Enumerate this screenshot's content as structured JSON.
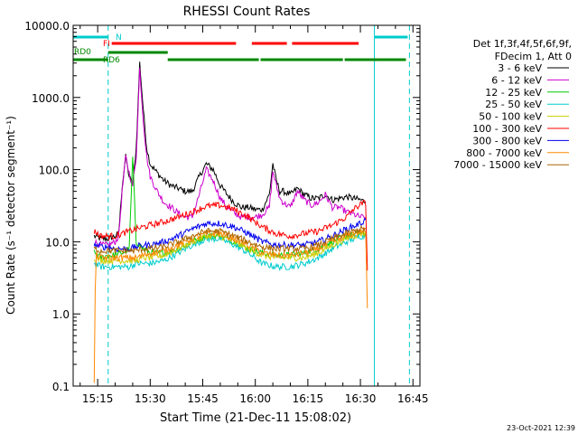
{
  "chart_data": {
    "type": "line",
    "title": "RHESSI Count Rates",
    "xlabel": "Start Time (21-Dec-11 15:08:02)",
    "ylabel": "Count Rate (s⁻¹ detector segment⁻¹)",
    "yscale": "log",
    "ylim": [
      0.1,
      10000
    ],
    "xlim_minutes": [
      0,
      99
    ],
    "x_ticks": [
      {
        "label": "15:15",
        "value": 7
      },
      {
        "label": "15:30",
        "value": 22
      },
      {
        "label": "15:45",
        "value": 37
      },
      {
        "label": "16:00",
        "value": 52
      },
      {
        "label": "16:15",
        "value": 67
      },
      {
        "label": "16:30",
        "value": 82
      },
      {
        "label": "16:45",
        "value": 97
      }
    ],
    "y_ticks": [
      {
        "label": "0.1",
        "value": 0.1
      },
      {
        "label": "1.0",
        "value": 1
      },
      {
        "label": "10.0",
        "value": 10
      },
      {
        "label": "100.0",
        "value": 100
      },
      {
        "label": "1000.0",
        "value": 1000
      },
      {
        "label": "10000.0",
        "value": 10000
      }
    ],
    "legend_header": [
      "Det 1f,3f,4f,5f,6f,9f,",
      "FDecim 1, Att 0"
    ],
    "legend_position": "right",
    "footer_timestamp": "23-Oct-2021 12:39",
    "series": [
      {
        "name": "3 - 6 keV",
        "color": "#000000",
        "x": [
          6,
          8,
          10,
          12,
          13,
          14,
          15,
          16,
          17,
          18,
          19,
          20,
          21,
          22,
          24,
          26,
          28,
          30,
          32,
          34,
          36,
          38,
          40,
          42,
          44,
          46,
          48,
          50,
          52,
          54,
          56,
          57,
          58,
          59,
          60,
          62,
          64,
          66,
          68,
          70,
          72,
          74,
          76,
          78,
          80,
          82,
          83.5
        ],
        "y": [
          12,
          11,
          11,
          12,
          13,
          60,
          150,
          80,
          60,
          200,
          3000,
          700,
          200,
          120,
          90,
          70,
          60,
          55,
          50,
          50,
          80,
          120,
          100,
          60,
          45,
          35,
          30,
          30,
          28,
          28,
          45,
          120,
          70,
          50,
          50,
          45,
          55,
          45,
          40,
          40,
          45,
          38,
          40,
          42,
          40,
          38,
          36
        ]
      },
      {
        "name": "6 - 12 keV",
        "color": "#cc00cc",
        "x": [
          6,
          8,
          10,
          12,
          13,
          14,
          15,
          16,
          17,
          18,
          19,
          20,
          21,
          22,
          24,
          26,
          28,
          30,
          32,
          34,
          36,
          38,
          40,
          42,
          44,
          46,
          48,
          50,
          52,
          54,
          56,
          57,
          58,
          59,
          60,
          62,
          64,
          66,
          68,
          70,
          72,
          74,
          76,
          78,
          80,
          82,
          83.5
        ],
        "y": [
          10,
          9,
          9,
          10,
          12,
          50,
          150,
          90,
          60,
          150,
          2500,
          500,
          150,
          80,
          50,
          35,
          30,
          25,
          22,
          22,
          45,
          100,
          70,
          40,
          30,
          25,
          22,
          22,
          22,
          24,
          30,
          95,
          60,
          40,
          35,
          30,
          50,
          38,
          32,
          35,
          45,
          30,
          30,
          26,
          24,
          22,
          22
        ]
      },
      {
        "name": "12 - 25 keV",
        "color": "#00cc00",
        "x": [
          6,
          8,
          10,
          12,
          14,
          16,
          17,
          18,
          19,
          20,
          22,
          26,
          30,
          34,
          38,
          42,
          46,
          50,
          54,
          58,
          62,
          66,
          70,
          74,
          78,
          82,
          83.5
        ],
        "y": [
          7,
          6,
          6.5,
          6.5,
          7,
          8,
          150,
          10,
          9,
          8,
          7,
          7,
          8,
          10,
          12,
          12,
          10,
          8,
          7,
          6.5,
          6.5,
          7,
          8,
          10,
          12,
          13,
          13
        ]
      },
      {
        "name": "25 - 50 keV",
        "color": "#00cccc",
        "x": [
          6,
          8,
          10,
          12,
          14,
          16,
          18,
          20,
          22,
          26,
          30,
          34,
          38,
          42,
          46,
          50,
          54,
          58,
          62,
          66,
          70,
          74,
          78,
          82,
          83.5
        ],
        "y": [
          5,
          4.5,
          4.5,
          4.5,
          4.5,
          4.5,
          5,
          5,
          5,
          5.5,
          7,
          9,
          11,
          11,
          9,
          7,
          5,
          4.5,
          4.5,
          5,
          6,
          8,
          10,
          12,
          12
        ]
      },
      {
        "name": "50 - 100 keV",
        "color": "#cccc00",
        "x": [
          6,
          8,
          10,
          12,
          14,
          16,
          18,
          20,
          22,
          26,
          30,
          34,
          38,
          42,
          46,
          50,
          54,
          58,
          62,
          66,
          70,
          74,
          78,
          82,
          83.5
        ],
        "y": [
          6,
          5.5,
          5.5,
          5.5,
          5.5,
          5.5,
          5.5,
          6,
          6,
          6.5,
          8,
          10,
          12,
          12,
          10,
          8,
          6.5,
          6,
          6,
          6,
          7,
          9,
          11,
          13,
          13
        ]
      },
      {
        "name": "100 - 300 keV",
        "color": "#ff0000",
        "x": [
          6,
          8,
          10,
          12,
          14,
          16,
          18,
          20,
          22,
          26,
          30,
          34,
          38,
          42,
          46,
          50,
          54,
          58,
          62,
          66,
          70,
          74,
          78,
          80,
          82,
          83.5,
          84
        ],
        "y": [
          14,
          12,
          12,
          12,
          13,
          14,
          15,
          16,
          17,
          19,
          22,
          26,
          31,
          32,
          28,
          22,
          16,
          13,
          12,
          13,
          14,
          17,
          22,
          28,
          33,
          35,
          4
        ]
      },
      {
        "name": "300 - 800 keV",
        "color": "#0000ee",
        "x": [
          6,
          8,
          10,
          12,
          14,
          16,
          18,
          20,
          22,
          26,
          30,
          34,
          38,
          42,
          46,
          50,
          54,
          58,
          62,
          66,
          70,
          74,
          78,
          82,
          83.5
        ],
        "y": [
          9,
          8.5,
          8.5,
          8,
          8,
          8,
          8.5,
          9,
          9,
          10,
          12,
          15,
          18,
          18,
          16,
          13,
          10,
          9,
          9,
          9,
          10,
          12,
          15,
          18,
          20
        ]
      },
      {
        "name": "800 - 7000 keV",
        "color": "#ff8800",
        "x": [
          6,
          6.3,
          6.6,
          8,
          10,
          12,
          14,
          16,
          18,
          20,
          22,
          26,
          30,
          34,
          38,
          42,
          46,
          50,
          54,
          58,
          62,
          66,
          70,
          74,
          78,
          82,
          83.5,
          84
        ],
        "y": [
          0.12,
          2,
          6.5,
          6,
          6,
          6,
          6,
          6,
          6,
          6.5,
          7,
          7.5,
          9,
          11,
          13,
          13,
          11,
          9,
          7,
          6.5,
          6.5,
          7,
          8,
          10,
          12,
          14,
          14,
          1.2
        ]
      },
      {
        "name": "7000 - 15000 keV",
        "color": "#aa6600",
        "x": [
          6,
          8,
          10,
          12,
          14,
          16,
          18,
          20,
          22,
          26,
          30,
          34,
          38,
          42,
          46,
          50,
          54,
          58,
          62,
          66,
          70,
          74,
          78,
          82,
          83.5
        ],
        "y": [
          8,
          7.5,
          7.5,
          7.5,
          7.5,
          7.5,
          7.5,
          8,
          8,
          8.5,
          10,
          12,
          14,
          14,
          12,
          10,
          8.5,
          8,
          8,
          8,
          9,
          11,
          13,
          15,
          15
        ]
      }
    ],
    "vertical_lines": [
      {
        "x": -0.5,
        "style": "solid",
        "color": "#00cccc"
      },
      {
        "x": 10,
        "style": "dashed",
        "color": "#00cccc"
      },
      {
        "x": 86,
        "style": "solid",
        "color": "#00cccc"
      },
      {
        "x": 96,
        "style": "dashed",
        "color": "#00cccc"
      }
    ],
    "state_bars": [
      {
        "label": "N",
        "color": "#00cccc",
        "row": 0,
        "segments": [
          [
            -0.5,
            10
          ],
          [
            86,
            95.5
          ]
        ]
      },
      {
        "label": "FI",
        "color": "#ff0000",
        "row": 1,
        "segments": [
          [
            11,
            46.5
          ],
          [
            51,
            61
          ],
          [
            62.5,
            81.5
          ]
        ]
      },
      {
        "label": "RD0",
        "color": "#008800",
        "row": 2,
        "segments": [
          [
            10,
            27
          ]
        ]
      },
      {
        "label": "RD6",
        "color": "#008800",
        "row": 3,
        "segments": [
          [
            -0.5,
            10
          ],
          [
            27,
            53
          ],
          [
            53.5,
            77
          ],
          [
            77.5,
            95
          ]
        ]
      }
    ]
  }
}
